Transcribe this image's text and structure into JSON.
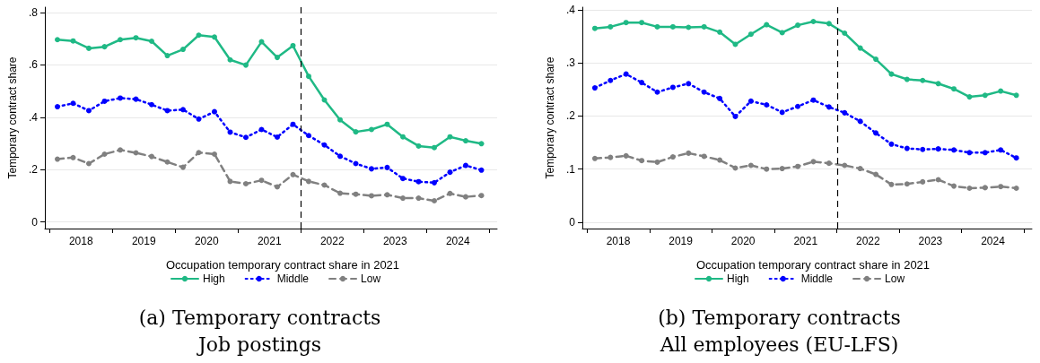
{
  "chart_data": [
    {
      "type": "line",
      "title": "(a) Temporary contracts",
      "subtitle": "Job postings",
      "ylabel": "Temporary contract share",
      "legend_title": "Occupation temporary contract share in 2021",
      "legend": "bottom",
      "grid": "y",
      "marker": "circle",
      "x": [
        2018,
        2018.25,
        2018.5,
        2018.75,
        2019,
        2019.25,
        2019.5,
        2019.75,
        2020,
        2020.25,
        2020.5,
        2020.75,
        2021,
        2021.25,
        2021.5,
        2021.75,
        2022,
        2022.25,
        2022.5,
        2022.75,
        2023,
        2023.25,
        2023.5,
        2023.75,
        2024,
        2024.25,
        2024.5,
        2024.75
      ],
      "xlim": [
        2017.8,
        2025
      ],
      "xticks": [
        {
          "value": 2017.875,
          "label": null
        },
        {
          "value": 2018.375,
          "label": "2018"
        },
        {
          "value": 2018.875,
          "label": null
        },
        {
          "value": 2019.375,
          "label": "2019"
        },
        {
          "value": 2019.875,
          "label": null
        },
        {
          "value": 2020.375,
          "label": "2020"
        },
        {
          "value": 2020.875,
          "label": null
        },
        {
          "value": 2021.375,
          "label": "2021"
        },
        {
          "value": 2021.875,
          "label": null
        },
        {
          "value": 2022.375,
          "label": "2022"
        },
        {
          "value": 2022.875,
          "label": null
        },
        {
          "value": 2023.375,
          "label": "2023"
        },
        {
          "value": 2023.875,
          "label": null
        },
        {
          "value": 2024.375,
          "label": "2024"
        },
        {
          "value": 2024.875,
          "label": null
        }
      ],
      "ylim": [
        -0.025,
        0.82
      ],
      "yticks": [
        0,
        {
          "value": 0.2,
          "label": ".2"
        },
        {
          "value": 0.4,
          "label": ".4"
        },
        {
          "value": 0.6,
          "label": ".6"
        },
        {
          "value": 0.8,
          "label": ".8"
        }
      ],
      "ref_lines": [
        {
          "axis": "x",
          "value": 2021.875,
          "color": "#000000",
          "line_style": "dashed"
        }
      ],
      "series": [
        {
          "name": "High",
          "color": "#1fb985",
          "line_style": "solid",
          "values": [
            0.696,
            0.691,
            0.663,
            0.669,
            0.696,
            0.703,
            0.69,
            0.635,
            0.659,
            0.713,
            0.706,
            0.619,
            0.599,
            0.688,
            0.628,
            0.673,
            0.556,
            0.466,
            0.39,
            0.344,
            0.353,
            0.373,
            0.325,
            0.29,
            0.284,
            0.325,
            0.31,
            0.299
          ]
        },
        {
          "name": "Middle",
          "color": "#0000ff",
          "line_style": "dotted",
          "values": [
            0.44,
            0.453,
            0.425,
            0.461,
            0.473,
            0.469,
            0.448,
            0.425,
            0.429,
            0.393,
            0.421,
            0.343,
            0.323,
            0.353,
            0.324,
            0.373,
            0.33,
            0.294,
            0.251,
            0.223,
            0.203,
            0.208,
            0.166,
            0.154,
            0.15,
            0.19,
            0.216,
            0.198
          ]
        },
        {
          "name": "Low",
          "color": "#808080",
          "line_style": "dashed",
          "values": [
            0.24,
            0.246,
            0.223,
            0.259,
            0.275,
            0.264,
            0.25,
            0.229,
            0.209,
            0.265,
            0.259,
            0.155,
            0.146,
            0.159,
            0.134,
            0.181,
            0.155,
            0.141,
            0.11,
            0.106,
            0.1,
            0.104,
            0.091,
            0.091,
            0.081,
            0.109,
            0.096,
            0.101
          ]
        }
      ]
    },
    {
      "type": "line",
      "title": "(b) Temporary contracts",
      "subtitle": "All employees (EU-LFS)",
      "ylabel": "Temporary contract share",
      "legend_title": "Occupation temporary contract share in 2021",
      "legend": "bottom",
      "grid": "y",
      "marker": "circle",
      "x": [
        2018,
        2018.25,
        2018.5,
        2018.75,
        2019,
        2019.25,
        2019.5,
        2019.75,
        2020,
        2020.25,
        2020.5,
        2020.75,
        2021,
        2021.25,
        2021.5,
        2021.75,
        2022,
        2022.25,
        2022.5,
        2022.75,
        2023,
        2023.25,
        2023.5,
        2023.75,
        2024,
        2024.25,
        2024.5,
        2024.75
      ],
      "xlim": [
        2017.8,
        2025
      ],
      "xticks": [
        {
          "value": 2017.875,
          "label": null
        },
        {
          "value": 2018.375,
          "label": "2018"
        },
        {
          "value": 2018.875,
          "label": null
        },
        {
          "value": 2019.375,
          "label": "2019"
        },
        {
          "value": 2019.875,
          "label": null
        },
        {
          "value": 2020.375,
          "label": "2020"
        },
        {
          "value": 2020.875,
          "label": null
        },
        {
          "value": 2021.375,
          "label": "2021"
        },
        {
          "value": 2021.875,
          "label": null
        },
        {
          "value": 2022.375,
          "label": "2022"
        },
        {
          "value": 2022.875,
          "label": null
        },
        {
          "value": 2023.375,
          "label": "2023"
        },
        {
          "value": 2023.875,
          "label": null
        },
        {
          "value": 2024.375,
          "label": "2024"
        },
        {
          "value": 2024.875,
          "label": null
        }
      ],
      "ylim": [
        -0.012,
        0.405
      ],
      "yticks": [
        0,
        {
          "value": 0.1,
          "label": ".1"
        },
        {
          "value": 0.2,
          "label": ".2"
        },
        {
          "value": 0.3,
          "label": ".3"
        },
        {
          "value": 0.4,
          "label": ".4"
        }
      ],
      "ref_lines": [
        {
          "axis": "x",
          "value": 2021.875,
          "color": "#000000",
          "line_style": "dashed"
        }
      ],
      "series": [
        {
          "name": "High",
          "color": "#1fb985",
          "line_style": "solid",
          "values": [
            0.365,
            0.368,
            0.376,
            0.376,
            0.368,
            0.368,
            0.367,
            0.368,
            0.358,
            0.335,
            0.354,
            0.372,
            0.357,
            0.371,
            0.378,
            0.374,
            0.356,
            0.328,
            0.307,
            0.279,
            0.269,
            0.267,
            0.261,
            0.251,
            0.236,
            0.239,
            0.247,
            0.239
          ]
        },
        {
          "name": "Middle",
          "color": "#0000ff",
          "line_style": "dotted",
          "values": [
            0.253,
            0.267,
            0.279,
            0.263,
            0.245,
            0.254,
            0.261,
            0.245,
            0.233,
            0.199,
            0.228,
            0.221,
            0.207,
            0.218,
            0.23,
            0.217,
            0.206,
            0.19,
            0.168,
            0.147,
            0.139,
            0.137,
            0.138,
            0.136,
            0.131,
            0.131,
            0.136,
            0.121
          ]
        },
        {
          "name": "Low",
          "color": "#808080",
          "line_style": "dashed",
          "values": [
            0.12,
            0.122,
            0.125,
            0.116,
            0.113,
            0.123,
            0.13,
            0.124,
            0.117,
            0.102,
            0.107,
            0.1,
            0.101,
            0.105,
            0.114,
            0.111,
            0.107,
            0.101,
            0.09,
            0.071,
            0.072,
            0.076,
            0.08,
            0.068,
            0.064,
            0.065,
            0.067,
            0.064
          ]
        }
      ]
    }
  ]
}
